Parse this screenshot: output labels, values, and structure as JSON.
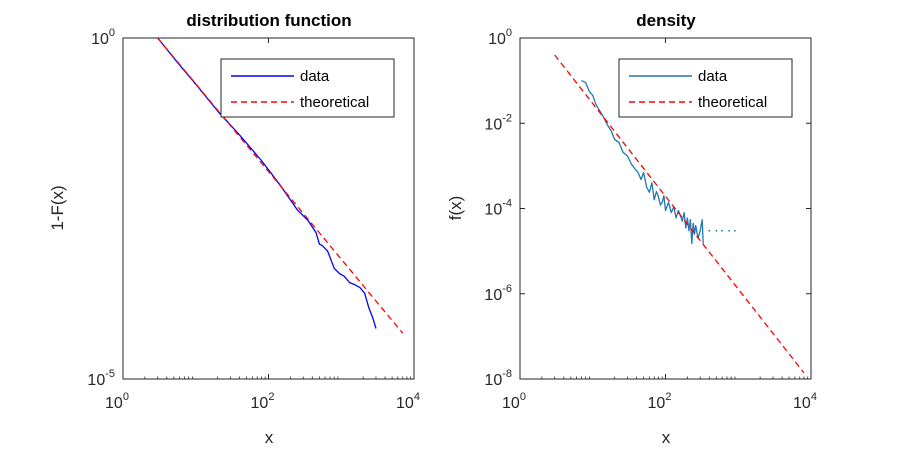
{
  "chart_data": [
    {
      "type": "line",
      "title": "distribution function",
      "xlabel": "x",
      "ylabel": "1-F(x)",
      "xscale": "log",
      "yscale": "log",
      "xlim": [
        1,
        10000
      ],
      "ylim": [
        1e-05,
        1
      ],
      "xticks": [
        {
          "base": "10",
          "exp": "0"
        },
        {
          "base": "10",
          "exp": "2"
        },
        {
          "base": "10",
          "exp": "4"
        }
      ],
      "yticks": [
        {
          "base": "10",
          "exp": "-5"
        },
        {
          "base": "10",
          "exp": "0"
        }
      ],
      "legend": {
        "position": "top-right",
        "entries": [
          "data",
          "theoretical"
        ]
      },
      "grid": false,
      "series": [
        {
          "name": "data",
          "color": "#0000ff",
          "style": "solid",
          "x": [
            3,
            6,
            10,
            20,
            40,
            80,
            150,
            250,
            350,
            450,
            500,
            550,
            650,
            800,
            950,
            1100,
            1300,
            1550,
            1800,
            2100,
            2400,
            2700,
            3000
          ],
          "y": [
            1.0,
            0.4,
            0.21,
            0.085,
            0.038,
            0.016,
            0.0066,
            0.003,
            0.0021,
            0.0014,
            0.00095,
            0.0009,
            0.00075,
            0.00042,
            0.00035,
            0.00032,
            0.00026,
            0.00024,
            0.00022,
            0.00018,
            0.00011,
            8e-05,
            5.5e-05
          ]
        },
        {
          "name": "theoretical",
          "color": "#ff0000",
          "style": "dashed",
          "x": [
            3,
            7000
          ],
          "y": [
            1.0,
            4.7e-05
          ]
        }
      ]
    },
    {
      "type": "line",
      "title": "density",
      "xlabel": "x",
      "ylabel": "f(x)",
      "xscale": "log",
      "yscale": "log",
      "xlim": [
        1,
        10000
      ],
      "ylim": [
        1e-08,
        1
      ],
      "xticks": [
        {
          "base": "10",
          "exp": "0"
        },
        {
          "base": "10",
          "exp": "2"
        },
        {
          "base": "10",
          "exp": "4"
        }
      ],
      "yticks": [
        {
          "base": "10",
          "exp": "-8"
        },
        {
          "base": "10",
          "exp": "-6"
        },
        {
          "base": "10",
          "exp": "-4"
        },
        {
          "base": "10",
          "exp": "-2"
        },
        {
          "base": "10",
          "exp": "0"
        }
      ],
      "legend": {
        "position": "top-right",
        "entries": [
          "data",
          "theoretical"
        ]
      },
      "grid": false,
      "series": [
        {
          "name": "data",
          "color": "#1f77b4",
          "style": "solid",
          "x": [
            7,
            8,
            9,
            10,
            11,
            12,
            14,
            16,
            18,
            20,
            23,
            26,
            30,
            34,
            38,
            42,
            46,
            50,
            55,
            60,
            65,
            70,
            75,
            80,
            85,
            90,
            95,
            100,
            110,
            120,
            130,
            140,
            150,
            160,
            170,
            180,
            190,
            200,
            210,
            220,
            230,
            240,
            250,
            260,
            280,
            300,
            320,
            330
          ],
          "y": [
            0.1,
            0.09,
            0.055,
            0.045,
            0.028,
            0.022,
            0.014,
            0.009,
            0.0065,
            0.0042,
            0.0035,
            0.0021,
            0.0017,
            0.0011,
            0.00085,
            0.0007,
            0.00048,
            0.0007,
            0.00032,
            0.00024,
            0.0004,
            0.00016,
            0.00025,
            0.00019,
            0.00012,
            0.00014,
            0.0002,
            9e-05,
            0.00014,
            8e-05,
            0.00011,
            6e-05,
            9e-05,
            7e-05,
            5e-05,
            8e-05,
            3.5e-05,
            6e-05,
            3e-05,
            5.5e-05,
            1.5e-05,
            4.5e-05,
            2.5e-05,
            4e-05,
            2e-05,
            3e-05,
            5.5e-05,
            1.5e-05
          ]
        },
        {
          "name": "theoretical",
          "color": "#ff0000",
          "style": "dashed",
          "x": [
            3,
            8000
          ],
          "y": [
            0.4,
            1.4e-08
          ]
        }
      ],
      "extra_points": {
        "color": "#1f77b4",
        "x": [
          400,
          500,
          600,
          750,
          900
        ],
        "y": [
          3e-05,
          3e-05,
          3e-05,
          3e-05,
          3e-05
        ]
      }
    }
  ]
}
